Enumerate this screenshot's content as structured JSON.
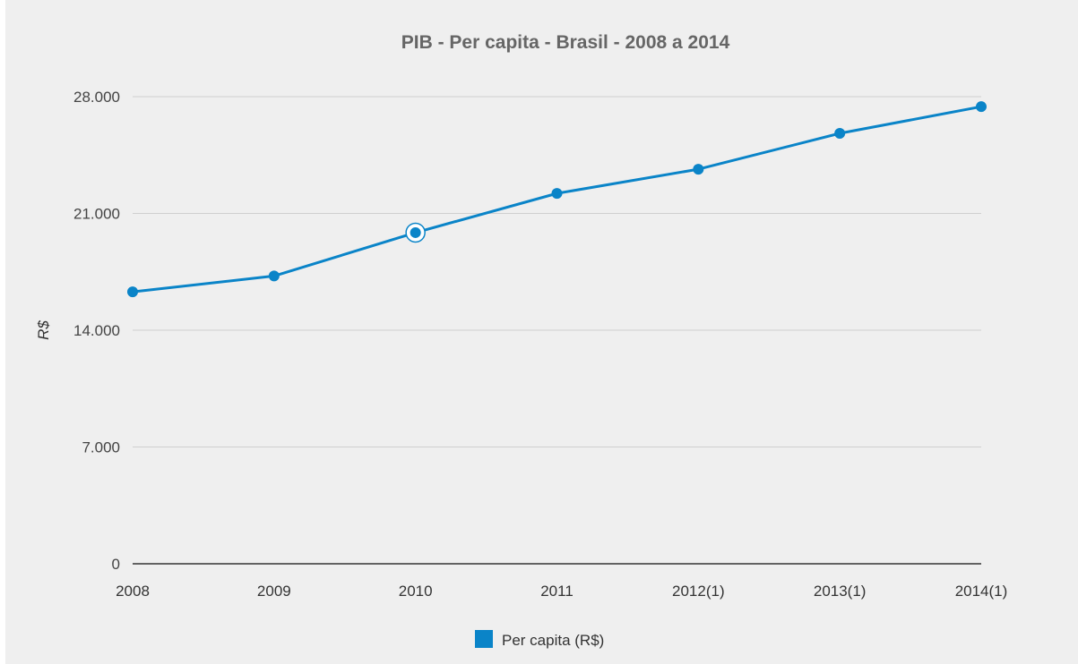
{
  "chart_data": {
    "type": "line",
    "title": "PIB - Per capita - Brasil - 2008 a 2014",
    "xlabel": "",
    "ylabel": "R$",
    "categories": [
      "2008",
      "2009",
      "2010",
      "2011",
      "2012(1)",
      "2013(1)",
      "2014(1)"
    ],
    "yticks": [
      "0",
      "7.000",
      "14.000",
      "21.000",
      "28.000"
    ],
    "ytick_values": [
      0,
      7000,
      14000,
      21000,
      28000
    ],
    "ylim": [
      0,
      28000
    ],
    "grid": true,
    "legend_position": "bottom",
    "highlighted_point": "2010",
    "series": [
      {
        "name": "Per capita (R$)",
        "color": "#0a84c8",
        "values": [
          16300,
          17250,
          19850,
          22200,
          23650,
          25800,
          27400
        ]
      }
    ]
  }
}
